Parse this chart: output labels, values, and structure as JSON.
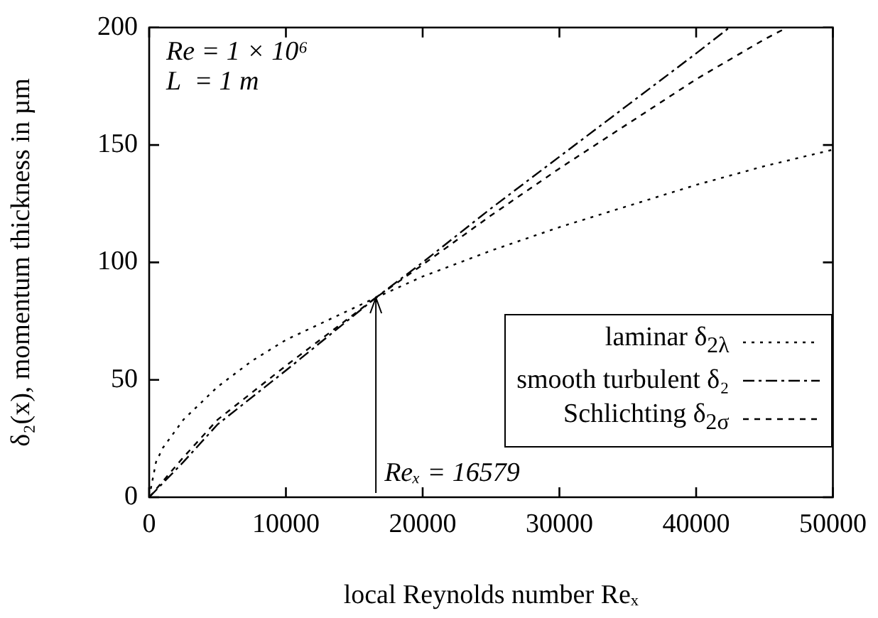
{
  "chart_data": {
    "type": "line",
    "xlabel": "local Reynolds number Reₓ",
    "ylabel": "δ₂(x), momentum thickness in µm",
    "xlim": [
      0,
      50000
    ],
    "xticks": [
      0,
      10000,
      20000,
      30000,
      40000,
      50000
    ],
    "ylim": [
      0,
      200
    ],
    "yticks": [
      0,
      50,
      100,
      150,
      200
    ],
    "legend": "bottom right",
    "marker": "none",
    "annotations": [
      "Re = 1 × 10⁶",
      "L  = 1 m",
      {
        "text": "Reₓ = 16579",
        "x": 16579,
        "y": 85
      }
    ],
    "series": [
      {
        "name": "laminar δ$_{2λ}$",
        "color": "#000000",
        "line_style": "dotted",
        "x": [
          0,
          500,
          1000,
          2500,
          5000,
          7500,
          10000,
          16579,
          20000,
          25000,
          30000,
          35000,
          40000,
          45000,
          50000
        ],
        "values": [
          0,
          15,
          21,
          33,
          47,
          58,
          67,
          85,
          94,
          105,
          115,
          124,
          133,
          141,
          148
        ]
      },
      {
        "name": "smooth turbulent δ₂",
        "color": "#000000",
        "line_style": "dashdot",
        "x": [
          0,
          2500,
          5000,
          10000,
          16579,
          20000,
          25000,
          30000,
          35000,
          40000,
          42430
        ],
        "values": [
          0,
          15,
          31,
          54,
          85,
          100,
          123,
          145,
          167,
          189,
          200
        ]
      },
      {
        "name": "Schlichting δ$_{2σ}$",
        "color": "#000000",
        "line_style": "dashed",
        "x": [
          0,
          2500,
          5000,
          10000,
          16579,
          20000,
          25000,
          30000,
          35000,
          40000,
          45000,
          46640
        ],
        "values": [
          0,
          17,
          33,
          56,
          85,
          99,
          120,
          140,
          159,
          178,
          195,
          200
        ]
      }
    ]
  }
}
